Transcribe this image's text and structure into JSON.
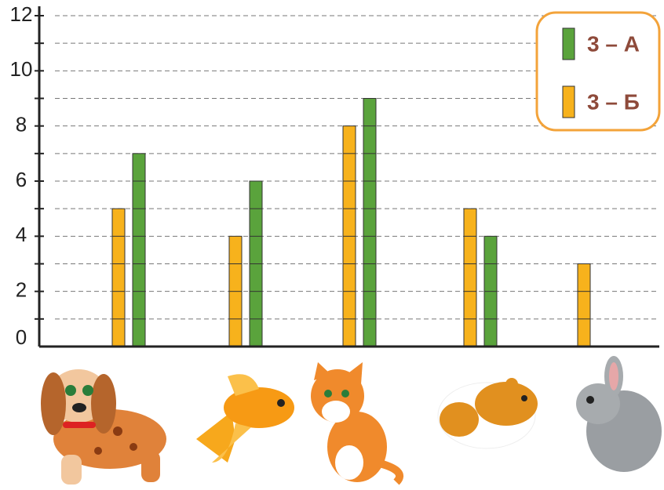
{
  "chart_data": {
    "type": "bar",
    "categories": [
      null,
      null,
      null,
      null,
      null
    ],
    "series": [
      {
        "name": "3 – А",
        "color": "#5aa33c",
        "values": [
          7,
          6,
          9,
          4,
          null
        ]
      },
      {
        "name": "3 – Б",
        "color": "#f7b21c",
        "values": [
          5,
          4,
          8,
          5,
          3
        ]
      }
    ],
    "ylim": [
      0,
      12
    ],
    "yticks": [
      0,
      2,
      4,
      6,
      8,
      10,
      12
    ],
    "yticks_minor": [
      1,
      3,
      5,
      7,
      9,
      11
    ],
    "grid": true,
    "legend": "top-right"
  }
}
